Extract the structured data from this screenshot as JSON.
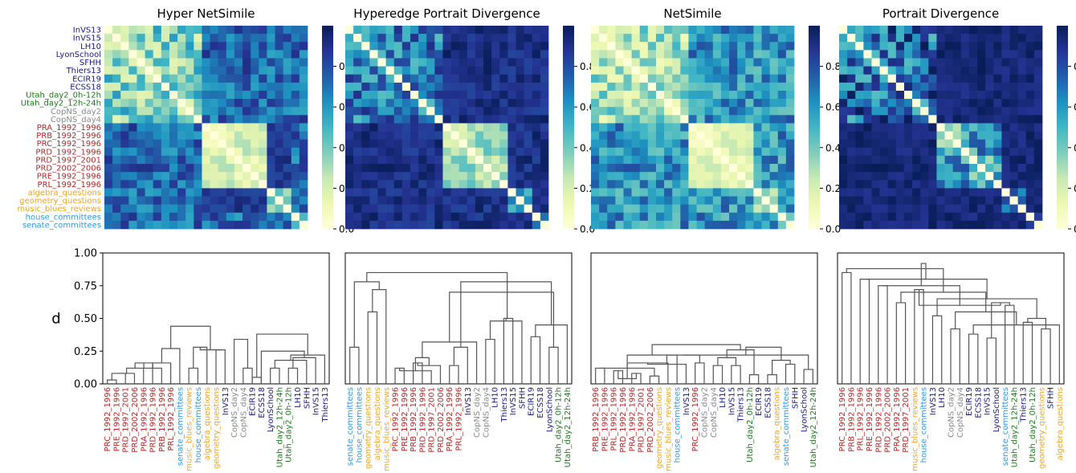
{
  "labels": [
    "InVS13",
    "InVS15",
    "LH10",
    "LyonSchool",
    "SFHH",
    "Thiers13",
    "ECIR19",
    "ECSS18",
    "Utah_day2_0h-12h",
    "Utah_day2_12h-24h",
    "CopNS_day2",
    "CopNS_day4",
    "PRA_1992_1996",
    "PRB_1992_1996",
    "PRC_1992_1996",
    "PRD_1992_1996",
    "PRD_1997_2001",
    "PRD_2002_2006",
    "PRE_1992_1996",
    "PRL_1992_1996",
    "algebra_questions",
    "geometry_questions",
    "music_blues_reviews",
    "house_committees",
    "senate_committees"
  ],
  "group_of": [
    0,
    0,
    0,
    0,
    0,
    0,
    0,
    0,
    1,
    1,
    2,
    2,
    3,
    3,
    3,
    3,
    3,
    3,
    3,
    3,
    4,
    4,
    4,
    5,
    5
  ],
  "colors": {
    "groups": [
      "#1a1a8a",
      "#1e7b1e",
      "#8a8a8a",
      "#b82828",
      "#f5a623",
      "#3399e6"
    ],
    "axis": "#000000",
    "dendro": "#555555"
  },
  "colorbar_ticks": [
    "0.0",
    "0.2",
    "0.4",
    "0.6",
    "0.8"
  ],
  "dendro_yaxis": {
    "label": "d",
    "ticks": [
      "0.00",
      "0.25",
      "0.50",
      "0.75",
      "1.00"
    ]
  },
  "chart_data": [
    {
      "type": "heatmap",
      "title": "Hyper NetSimile",
      "vrange": [
        0,
        1
      ],
      "dendrogram": {
        "order": [
          "PRC_1992_1996",
          "PRE_1992_1996",
          "PRD_1997_2001",
          "PRD_2002_2006",
          "PRA_1992_1996",
          "PRD_1992_1996",
          "PRB_1992_1996",
          "PRL_1992_1996",
          "senate_committees",
          "music_blues_reviews",
          "house_committees",
          "algebra_questions",
          "geometry_questions",
          "InVS13",
          "CopNS_day2",
          "CopNS_day4",
          "ECIR19",
          "ECSS18",
          "LyonSchool",
          "Utah_day2_12h-24h",
          "Utah_day2_0h-12h",
          "LH10",
          "SFHH",
          "InVS15",
          "Thiers13"
        ],
        "ylim": [
          0,
          1
        ]
      }
    },
    {
      "type": "heatmap",
      "title": "Hyperedge Portrait Divergence",
      "vrange": [
        0,
        1
      ],
      "dendrogram": {
        "order": [
          "senate_committees",
          "house_committees",
          "geometry_questions",
          "algebra_questions",
          "music_blues_reviews",
          "PRC_1992_1996",
          "PRE_1992_1996",
          "PRB_1992_1996",
          "PRD_1992_1996",
          "PRD_1997_2001",
          "PRD_2002_2006",
          "PRA_1992_1996",
          "PRL_1992_1996",
          "InVS13",
          "CopNS_day2",
          "CopNS_day4",
          "LH10",
          "Thiers13",
          "InVS15",
          "SFHH",
          "ECIR19",
          "ECSS18",
          "LyonSchool",
          "Utah_day2_0h-12h",
          "Utah_day2_12h-24h"
        ],
        "ylim": [
          0,
          1
        ]
      }
    },
    {
      "type": "heatmap",
      "title": "NetSimile",
      "vrange": [
        0,
        1
      ],
      "dendrogram": {
        "order": [
          "PRB_1992_1996",
          "PRE_1992_1996",
          "PRL_1992_1996",
          "PRD_1992_1996",
          "PRA_1992_1996",
          "PRD_1997_2001",
          "PRD_2002_2006",
          "geometry_questions",
          "music_blues_reviews",
          "house_committees",
          "InVS13",
          "PRC_1992_1996",
          "CopNS_day2",
          "CopNS_day4",
          "LH10",
          "InVS15",
          "Thiers13",
          "Utah_day2_0h-12h",
          "ECIR19",
          "ECSS18",
          "algebra_questions",
          "senate_committees",
          "SFHH",
          "LyonSchool",
          "Utah_day2_12h-24h"
        ],
        "ylim": [
          0,
          1
        ]
      }
    },
    {
      "type": "heatmap",
      "title": "Portrait Divergence",
      "vrange": [
        0,
        1
      ],
      "dendrogram": {
        "order": [
          "PRC_1992_1996",
          "PRB_1992_1996",
          "PRL_1992_1996",
          "PRE_1992_1996",
          "PRD_1992_1996",
          "PRD_2002_2006",
          "PRA_1992_1996",
          "PRD_1997_2001",
          "music_blues_reviews",
          "house_committees",
          "InVS13",
          "LH10",
          "CopNS_day2",
          "CopNS_day4",
          "ECIR19",
          "ECSS18",
          "InVS15",
          "LyonSchool",
          "senate_committees",
          "Utah_day2_12h-24h",
          "Thiers13",
          "Utah_day2_0h-12h",
          "geometry_questions",
          "SFHH",
          "algebra_questions"
        ],
        "ylim": [
          0,
          1
        ]
      }
    }
  ]
}
